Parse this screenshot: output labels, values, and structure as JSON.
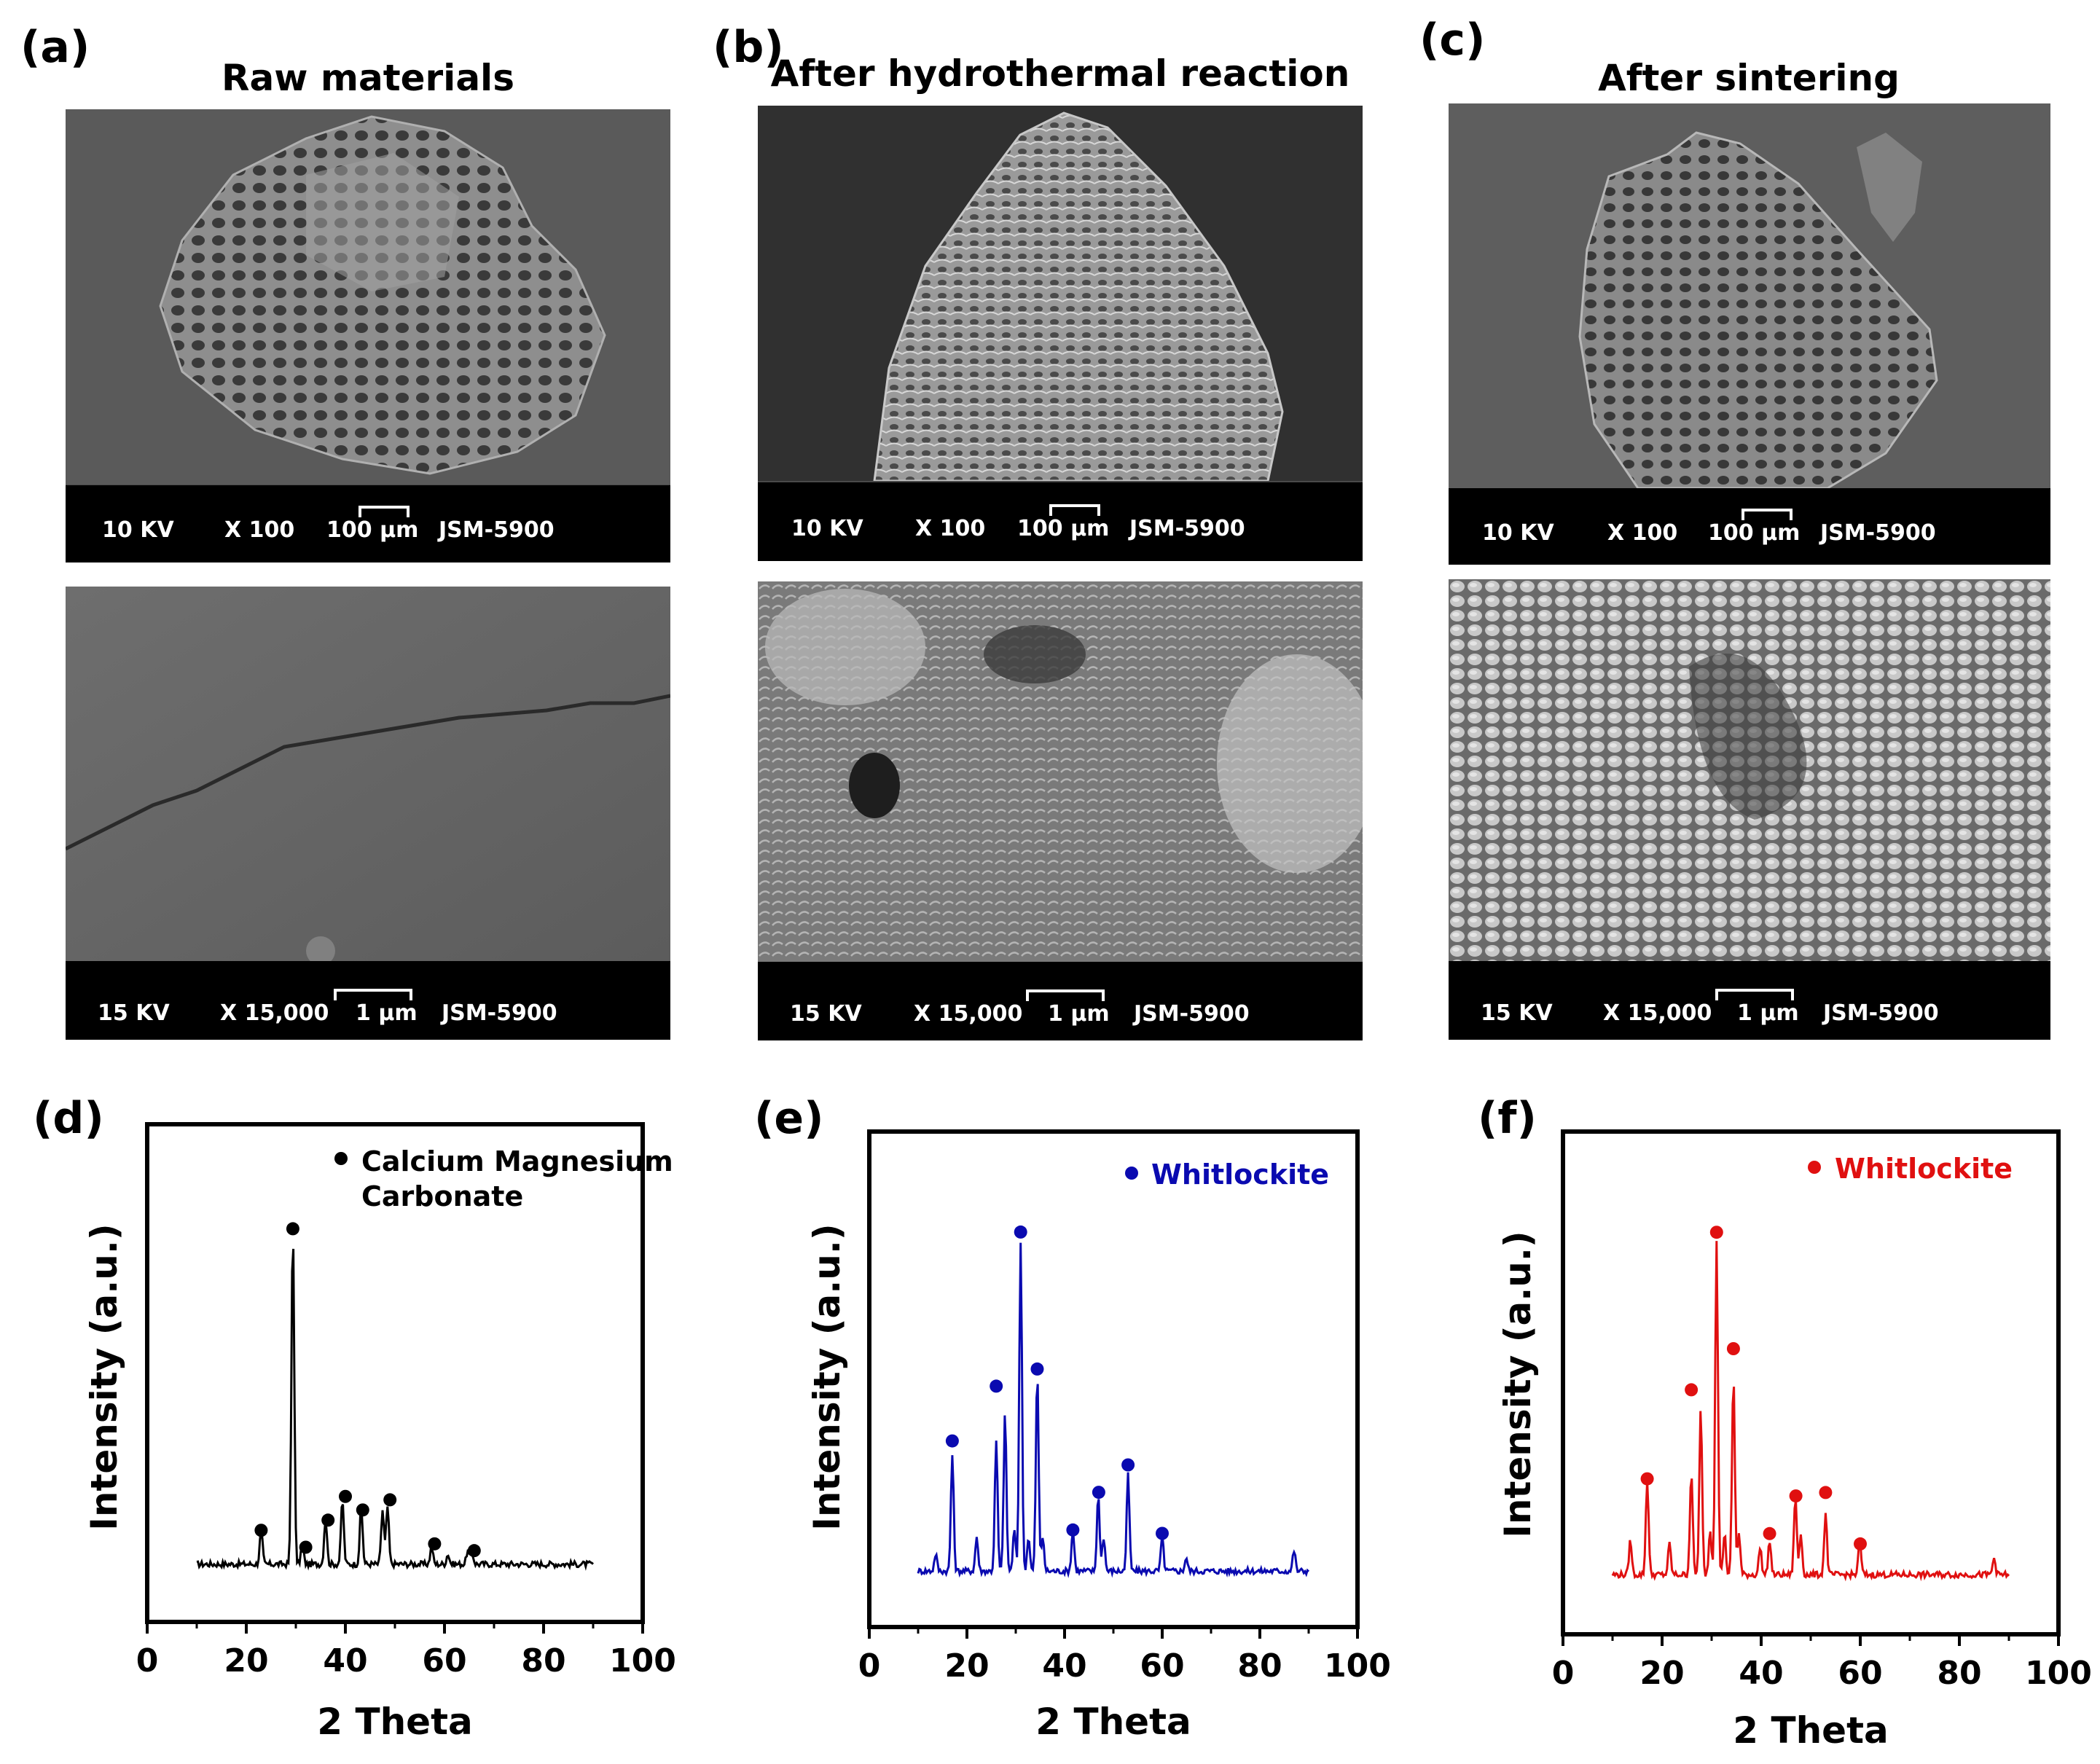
{
  "panels": {
    "a": {
      "label": "(a)",
      "title": "Raw materials"
    },
    "b": {
      "label": "(b)",
      "title": "After hydrothermal reaction"
    },
    "c": {
      "label": "(c)",
      "title": "After sintering"
    },
    "d": {
      "label": "(d)"
    },
    "e": {
      "label": "(e)"
    },
    "f": {
      "label": "(f)"
    }
  },
  "sem": {
    "low": {
      "kv": "10 KV",
      "mag": "X 100",
      "scale": "100 µm",
      "model": "JSM-5900"
    },
    "high": {
      "kv": "15 KV",
      "mag": "X 15,000",
      "scale": "1 µm",
      "model": "JSM-5900"
    }
  },
  "colors": {
    "d": "#000000",
    "e": "#0a0ab0",
    "f": "#e01010"
  },
  "chart_data": [
    {
      "type": "line",
      "panel": "d",
      "xlabel": "2 Theta",
      "ylabel": "Intensity (a.u.)",
      "xlim": [
        0,
        100
      ],
      "xticks": [
        0,
        20,
        40,
        60,
        80,
        100
      ],
      "legend": [
        "Calcium Magnesium",
        "Carbonate"
      ],
      "legend_position": "top-right",
      "color": "#000000",
      "baseline": 0.05,
      "peaks": [
        [
          23.0,
          0.1
        ],
        [
          29.4,
          1.0
        ],
        [
          31.3,
          0.06
        ],
        [
          36.0,
          0.14
        ],
        [
          39.4,
          0.19
        ],
        [
          43.2,
          0.17
        ],
        [
          47.5,
          0.16
        ],
        [
          48.5,
          0.17
        ],
        [
          57.4,
          0.05
        ],
        [
          60.7,
          0.03
        ],
        [
          64.7,
          0.04
        ],
        [
          65.6,
          0.03
        ]
      ],
      "markers": [
        [
          23.0,
          0.15
        ],
        [
          29.4,
          1.04
        ],
        [
          32.0,
          0.1
        ],
        [
          36.5,
          0.18
        ],
        [
          40.0,
          0.25
        ],
        [
          43.5,
          0.21
        ],
        [
          49.0,
          0.24
        ],
        [
          58.0,
          0.11
        ],
        [
          66.0,
          0.09
        ]
      ]
    },
    {
      "type": "line",
      "panel": "e",
      "xlabel": "2 Theta",
      "ylabel": "Intensity (a.u.)",
      "xlim": [
        0,
        100
      ],
      "xticks": [
        0,
        20,
        40,
        60,
        80,
        100
      ],
      "legend": [
        "Whitlockite"
      ],
      "legend_position": "top-right",
      "color": "#0a0ab0",
      "baseline": 0.04,
      "peaks": [
        [
          13.6,
          0.05
        ],
        [
          17.0,
          0.34
        ],
        [
          22.0,
          0.1
        ],
        [
          26.0,
          0.38
        ],
        [
          27.8,
          0.46
        ],
        [
          29.7,
          0.12
        ],
        [
          31.0,
          0.96
        ],
        [
          32.6,
          0.1
        ],
        [
          34.4,
          0.58
        ],
        [
          35.5,
          0.1
        ],
        [
          41.7,
          0.12
        ],
        [
          46.9,
          0.22
        ],
        [
          48.0,
          0.1
        ],
        [
          53.0,
          0.28
        ],
        [
          60.0,
          0.1
        ],
        [
          64.9,
          0.04
        ],
        [
          87.0,
          0.06
        ]
      ],
      "markers": [
        [
          17.0,
          0.42
        ],
        [
          26.0,
          0.58
        ],
        [
          31.0,
          1.03
        ],
        [
          34.4,
          0.63
        ],
        [
          41.7,
          0.16
        ],
        [
          47.0,
          0.27
        ],
        [
          53.0,
          0.35
        ],
        [
          60.0,
          0.15
        ]
      ]
    },
    {
      "type": "line",
      "panel": "f",
      "xlabel": "2 Theta",
      "ylabel": "Intensity (a.u.)",
      "xlim": [
        0,
        100
      ],
      "xticks": [
        0,
        20,
        40,
        60,
        80,
        100
      ],
      "legend": [
        "Whitlockite"
      ],
      "legend_position": "top-right",
      "color": "#e01010",
      "baseline": 0.04,
      "peaks": [
        [
          13.6,
          0.1
        ],
        [
          17.0,
          0.28
        ],
        [
          21.5,
          0.09
        ],
        [
          25.9,
          0.3
        ],
        [
          27.8,
          0.48
        ],
        [
          29.7,
          0.13
        ],
        [
          31.0,
          0.98
        ],
        [
          32.6,
          0.12
        ],
        [
          34.4,
          0.58
        ],
        [
          35.5,
          0.12
        ],
        [
          39.8,
          0.08
        ],
        [
          41.7,
          0.1
        ],
        [
          46.9,
          0.23
        ],
        [
          48.0,
          0.12
        ],
        [
          53.0,
          0.18
        ],
        [
          59.9,
          0.1
        ],
        [
          87.0,
          0.05
        ]
      ],
      "markers": [
        [
          17.0,
          0.32
        ],
        [
          25.9,
          0.58
        ],
        [
          31.0,
          1.04
        ],
        [
          34.4,
          0.7
        ],
        [
          41.7,
          0.16
        ],
        [
          47.0,
          0.27
        ],
        [
          53.0,
          0.28
        ],
        [
          60.0,
          0.13
        ]
      ]
    }
  ]
}
